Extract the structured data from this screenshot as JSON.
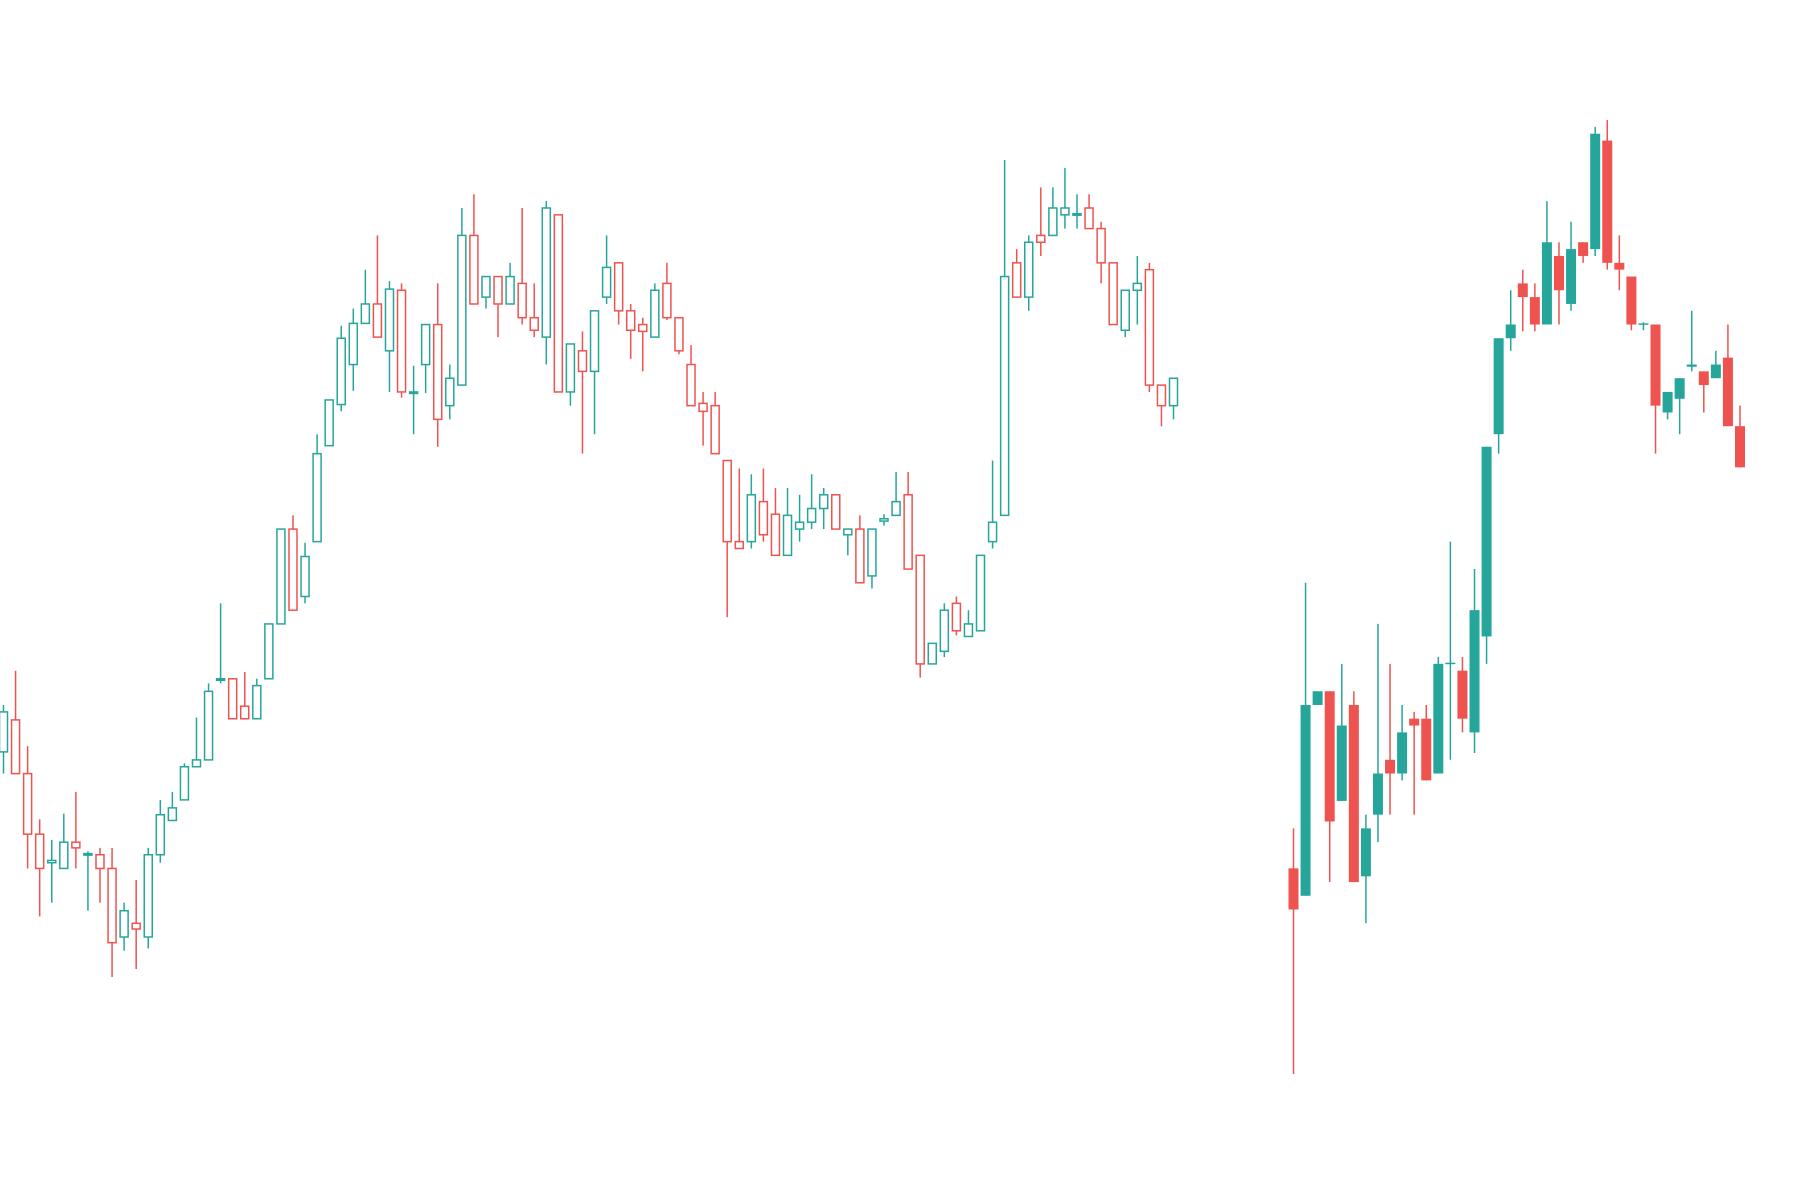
{
  "chart_data": [
    {
      "type": "candlestick",
      "style": "hollow",
      "up_color": "#26a69a",
      "down_color": "#ef5350",
      "open": [
        392,
        420,
        373,
        320,
        295,
        290,
        313,
        302,
        302,
        290,
        230,
        242,
        230,
        302,
        332,
        350,
        379,
        385,
        455,
        456,
        432,
        421,
        456,
        504,
        587,
        528,
        576,
        660,
        696,
        731,
        767,
        784,
        743,
        796,
        706,
        731,
        766,
        695,
        713,
        844,
        790,
        808,
        784,
        802,
        772,
        755,
        862,
        707,
        743,
        725,
        790,
        820,
        778,
        766,
        755,
        802,
        772,
        731,
        697,
        695,
        647,
        576,
        576,
        611,
        600,
        564,
        587,
        593,
        605,
        617,
        582,
        587,
        546,
        594,
        599,
        617,
        564,
        469,
        480,
        522,
        493,
        498,
        576,
        599,
        820,
        790,
        844,
        844,
        862,
        862,
        868,
        850,
        820,
        761,
        796,
        814,
        713,
        695
      ],
      "high": [
        433,
        463,
        397,
        333,
        315,
        338,
        357,
        305,
        308,
        308,
        260,
        280,
        308,
        350,
        357,
        382,
        422,
        452,
        522,
        456,
        462,
        456,
        504,
        587,
        599,
        575,
        670,
        700,
        765,
        780,
        814,
        844,
        804,
        802,
        730,
        766,
        802,
        731,
        868,
        880,
        808,
        808,
        820,
        868,
        802,
        874,
        862,
        749,
        760,
        778,
        844,
        820,
        784,
        772,
        802,
        820,
        772,
        748,
        707,
        707,
        647,
        640,
        635,
        640,
        623,
        623,
        617,
        635,
        623,
        617,
        587,
        599,
        587,
        600,
        637,
        637,
        564,
        487,
        522,
        528,
        516,
        564,
        647,
        910,
        832,
        844,
        886,
        886,
        903,
        880,
        880,
        856,
        820,
        796,
        826,
        820,
        713,
        719
      ],
      "low": [
        373,
        373,
        290,
        248,
        260,
        290,
        290,
        253,
        260,
        195,
        218,
        202,
        220,
        295,
        332,
        350,
        379,
        385,
        452,
        421,
        421,
        421,
        456,
        504,
        516,
        522,
        576,
        660,
        690,
        708,
        767,
        755,
        707,
        702,
        670,
        706,
        659,
        683,
        713,
        784,
        780,
        755,
        784,
        766,
        755,
        731,
        707,
        695,
        653,
        670,
        784,
        766,
        736,
        725,
        755,
        770,
        740,
        695,
        660,
        653,
        510,
        570,
        570,
        576,
        564,
        564,
        576,
        587,
        587,
        587,
        564,
        540,
        535,
        590,
        599,
        552,
        457,
        469,
        475,
        494,
        493,
        498,
        570,
        599,
        790,
        778,
        826,
        844,
        850,
        850,
        850,
        802,
        766,
        755,
        766,
        707,
        677,
        683
      ],
      "close": [
        427,
        373,
        320,
        290,
        297,
        313,
        308,
        303,
        290,
        225,
        253,
        237,
        302,
        337,
        343,
        379,
        385,
        445,
        456,
        421,
        421,
        450,
        504,
        587,
        516,
        563,
        653,
        700,
        754,
        767,
        784,
        755,
        797,
        707,
        707,
        766,
        683,
        719,
        844,
        784,
        808,
        784,
        808,
        772,
        761,
        868,
        707,
        749,
        725,
        778,
        816,
        778,
        761,
        760,
        796,
        772,
        743,
        695,
        690,
        653,
        576,
        570,
        617,
        582,
        564,
        599,
        593,
        605,
        617,
        587,
        587,
        540,
        587,
        596,
        611,
        552,
        469,
        487,
        516,
        498,
        504,
        564,
        593,
        808,
        790,
        838,
        838,
        868,
        868,
        863,
        850,
        820,
        766,
        796,
        802,
        713,
        695,
        719
      ]
    },
    {
      "type": "candlestick",
      "style": "filled",
      "up_color": "#26a69a",
      "down_color": "#ef5350",
      "open": [
        290,
        266,
        433,
        445,
        349,
        433,
        283,
        337,
        385,
        373,
        421,
        421,
        373,
        469,
        463,
        409,
        493,
        670,
        754,
        802,
        790,
        766,
        826,
        784,
        838,
        832,
        927,
        820,
        808,
        766,
        766,
        689,
        701,
        729,
        725,
        719,
        737,
        677
      ],
      "high": [
        325,
        540,
        445,
        445,
        469,
        445,
        337,
        504,
        469,
        433,
        427,
        433,
        475,
        576,
        475,
        552,
        659,
        754,
        796,
        814,
        802,
        874,
        838,
        856,
        838,
        939,
        945,
        844,
        808,
        768,
        766,
        707,
        719,
        778,
        725,
        743,
        766,
        695
      ],
      "low": [
        110,
        266,
        433,
        278,
        349,
        278,
        242,
        313,
        337,
        367,
        337,
        367,
        373,
        385,
        409,
        391,
        469,
        653,
        743,
        760,
        760,
        766,
        766,
        778,
        820,
        826,
        814,
        796,
        761,
        761,
        653,
        683,
        670,
        725,
        689,
        719,
        677,
        641
      ],
      "close": [
        254,
        433,
        445,
        331,
        415,
        278,
        325,
        373,
        373,
        409,
        415,
        367,
        469,
        470,
        421,
        516,
        659,
        754,
        766,
        790,
        766,
        838,
        796,
        832,
        826,
        933,
        820,
        814,
        766,
        767,
        695,
        707,
        719,
        731,
        713,
        731,
        677,
        641
      ]
    }
  ]
}
